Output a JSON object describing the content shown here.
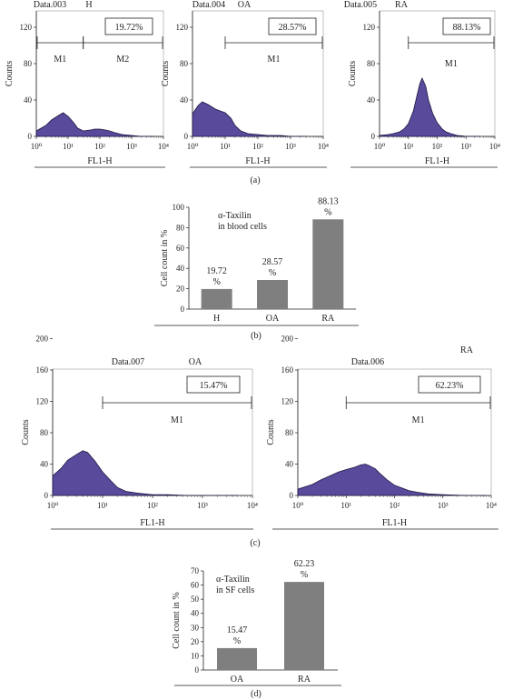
{
  "histograms": [
    {
      "title": "Data.003",
      "group": "H",
      "xlabel": "FL1-H",
      "ylabel": "Counts",
      "yticks": [
        "0",
        "40",
        "80",
        "120",
        "160"
      ],
      "xticks": [
        "10⁰",
        "10¹",
        "10²",
        "10³",
        "10⁴"
      ],
      "gates": [
        {
          "name": "M1",
          "from": 1,
          "to": 30
        },
        {
          "name": "M2",
          "from": 30,
          "to": 10000
        }
      ],
      "pct": "19.72%"
    },
    {
      "title": "Data.004",
      "group": "OA",
      "xlabel": "FL1-H",
      "ylabel": "Counts",
      "yticks": [
        "0",
        "40",
        "80",
        "120",
        "160"
      ],
      "xticks": [
        "10⁰",
        "10¹",
        "10²",
        "10³",
        "10⁴"
      ],
      "gates": [
        {
          "name": "M1",
          "from": 10,
          "to": 10000
        }
      ],
      "pct": "28.57%"
    },
    {
      "title": "Data.005",
      "group": "RA",
      "xlabel": "FL1-H",
      "ylabel": "Counts",
      "yticks": [
        "0",
        "40",
        "80",
        "120",
        "160"
      ],
      "xticks": [
        "10⁰",
        "10¹",
        "10²",
        "10³",
        "10⁴"
      ],
      "gates": [
        {
          "name": "M1",
          "from": 10,
          "to": 10000
        }
      ],
      "pct": "88.13%"
    },
    {
      "title": "Data.007",
      "group": "OA",
      "xlabel": "FL1-H",
      "ylabel": "Counts",
      "yticks": [
        "0",
        "40",
        "80",
        "120",
        "160",
        "200"
      ],
      "xticks": [
        "10⁰",
        "10¹",
        "10²",
        "10³",
        "10⁴"
      ],
      "gates": [
        {
          "name": "M1",
          "from": 10,
          "to": 10000
        }
      ],
      "pct": "15.47%"
    },
    {
      "title": "Data.006",
      "group": "RA",
      "xlabel": "FL1-H",
      "ylabel": "Counts",
      "yticks": [
        "0",
        "40",
        "80",
        "120",
        "160",
        "200"
      ],
      "xticks": [
        "10⁰",
        "10¹",
        "10²",
        "10³",
        "10⁴"
      ],
      "gates": [
        {
          "name": "M1",
          "from": 10,
          "to": 10000
        }
      ],
      "pct": "62.23%"
    }
  ],
  "panel_labels": [
    "(a)",
    "(b)",
    "(c)",
    "(d)"
  ],
  "chart_data": [
    {
      "type": "area",
      "title": "Data.003 H",
      "xlabel": "FL1-H",
      "ylabel": "Counts",
      "xscale": "log",
      "xlim": [
        1,
        10000
      ],
      "ylim": [
        0,
        200
      ],
      "x": [
        1,
        2,
        3,
        5,
        7,
        10,
        15,
        20,
        30,
        50,
        70,
        100,
        150,
        200,
        300,
        500,
        1000,
        2000,
        5000
      ],
      "y": [
        6,
        12,
        18,
        23,
        26,
        22,
        15,
        9,
        6,
        7,
        8,
        8,
        7,
        6,
        4,
        2,
        1,
        0,
        0
      ]
    },
    {
      "type": "area",
      "title": "Data.004 OA",
      "xlabel": "FL1-H",
      "ylabel": "Counts",
      "xscale": "log",
      "xlim": [
        1,
        10000
      ],
      "ylim": [
        0,
        200
      ],
      "x": [
        1,
        1.5,
        2,
        3,
        5,
        7,
        10,
        15,
        20,
        30,
        50,
        100,
        200,
        500,
        1000,
        3000
      ],
      "y": [
        25,
        34,
        38,
        35,
        30,
        28,
        26,
        20,
        12,
        6,
        3,
        2,
        1,
        1,
        0,
        0
      ]
    },
    {
      "type": "area",
      "title": "Data.005 RA",
      "xlabel": "FL1-H",
      "ylabel": "Counts",
      "xscale": "log",
      "xlim": [
        1,
        10000
      ],
      "ylim": [
        0,
        200
      ],
      "x": [
        1,
        2,
        3,
        5,
        7,
        10,
        15,
        20,
        25,
        30,
        40,
        50,
        70,
        100,
        150,
        200,
        300,
        500,
        1000,
        3000
      ],
      "y": [
        1,
        2,
        3,
        5,
        8,
        14,
        28,
        45,
        58,
        64,
        55,
        40,
        25,
        15,
        8,
        5,
        3,
        1,
        0,
        0
      ]
    },
    {
      "type": "bar",
      "title": "α-Taxilin in blood cells",
      "ylabel": "Cell count in %",
      "categories": [
        "H",
        "OA",
        "RA"
      ],
      "values": [
        19.72,
        28.57,
        88.13
      ],
      "data_labels": [
        "19.72\n%",
        "28.57\n%",
        "88.13\n%"
      ],
      "ylim": [
        0,
        100
      ],
      "yticks": [
        0,
        20,
        40,
        60,
        80,
        100
      ]
    },
    {
      "type": "area",
      "title": "Data.007 OA",
      "xlabel": "FL1-H",
      "ylabel": "Counts",
      "xscale": "log",
      "xlim": [
        1,
        10000
      ],
      "ylim": [
        0,
        200
      ],
      "x": [
        1,
        1.5,
        2,
        3,
        4,
        5,
        7,
        10,
        15,
        20,
        30,
        50,
        100,
        200,
        500,
        1000,
        5000
      ],
      "y": [
        25,
        35,
        45,
        52,
        57,
        55,
        44,
        30,
        18,
        10,
        5,
        3,
        1,
        1,
        0,
        0,
        0
      ]
    },
    {
      "type": "area",
      "title": "Data.006 RA",
      "xlabel": "FL1-H",
      "ylabel": "Counts",
      "xscale": "log",
      "xlim": [
        1,
        10000
      ],
      "ylim": [
        0,
        200
      ],
      "x": [
        1,
        2,
        3,
        5,
        7,
        10,
        15,
        20,
        25,
        30,
        40,
        50,
        70,
        100,
        200,
        300,
        500,
        1000,
        3000,
        8000
      ],
      "y": [
        8,
        14,
        20,
        26,
        30,
        33,
        36,
        39,
        40,
        38,
        34,
        28,
        20,
        13,
        6,
        4,
        2,
        1,
        0,
        0
      ]
    },
    {
      "type": "bar",
      "title": "α-Taxilin in SF cells",
      "ylabel": "Cell count in %",
      "categories": [
        "OA",
        "RA"
      ],
      "values": [
        15.47,
        62.23
      ],
      "data_labels": [
        "15.47\n%",
        "62.23\n%"
      ],
      "ylim": [
        0,
        70
      ],
      "yticks": [
        0,
        10,
        20,
        30,
        40,
        50,
        60,
        70
      ]
    }
  ]
}
